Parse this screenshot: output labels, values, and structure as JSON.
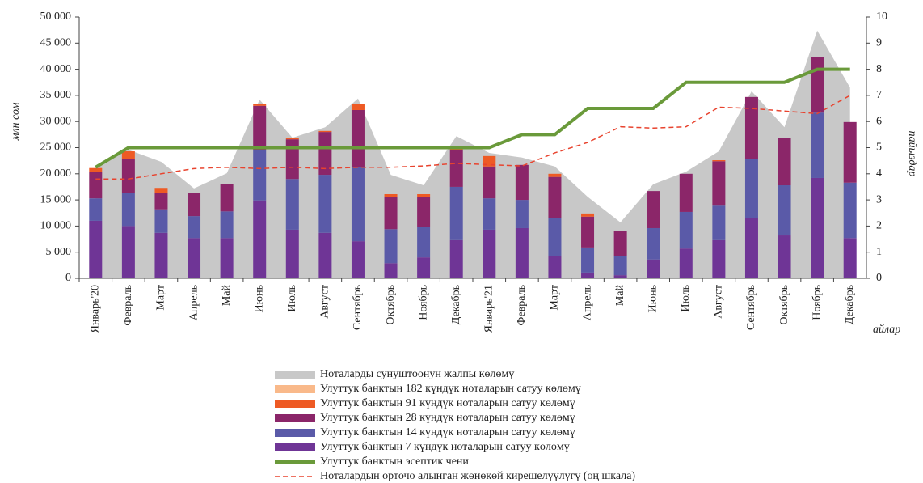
{
  "chart_data": {
    "type": "bar",
    "stacked": true,
    "categories": [
      "Январь'20",
      "Февраль",
      "Март",
      "Апрель",
      "Май",
      "Июнь",
      "Июль",
      "Август",
      "Сентябрь",
      "Октябрь",
      "Ноябрь",
      "Декабрь",
      "Январь'21",
      "Февраль",
      "Март",
      "Апрель",
      "Май",
      "Июнь",
      "Июль",
      "Август",
      "Сентябрь",
      "Октябрь",
      "Ноябрь",
      "Декабрь"
    ],
    "ylabel": "млн сом",
    "y2label": "пайыздар",
    "xlabel": "айлар",
    "ylim": [
      0,
      50000
    ],
    "yticks": [
      0,
      {
        "value": 5000,
        "label": "5 000"
      },
      {
        "value": 10000,
        "label": "10 000"
      },
      {
        "value": 15000,
        "label": "15 000"
      },
      {
        "value": 20000,
        "label": "20 000"
      },
      {
        "value": 25000,
        "label": "25 000"
      },
      {
        "value": 30000,
        "label": "30 000"
      },
      {
        "value": 35000,
        "label": "35 000"
      },
      {
        "value": 40000,
        "label": "40 000"
      },
      {
        "value": 45000,
        "label": "45 000"
      },
      {
        "value": 50000,
        "label": "50 000"
      }
    ],
    "y2lim": [
      0,
      10
    ],
    "y2ticks": [
      0,
      1,
      2,
      3,
      4,
      5,
      6,
      7,
      8,
      9,
      10
    ],
    "series": [
      {
        "name": "Ноталарды сунуштоонун жалпы көлөмү",
        "type": "area",
        "color": "#c8c8c8",
        "values": [
          21500,
          24600,
          22300,
          17200,
          20100,
          34200,
          26900,
          28900,
          34400,
          19800,
          17800,
          27200,
          24000,
          23100,
          21400,
          15600,
          10700,
          18000,
          20400,
          24300,
          35800,
          28900,
          47400,
          36500
        ]
      },
      {
        "name": "Улуттук банктын 182 күндүк ноталарын сатуу көлөмү",
        "type": "bar",
        "color": "#f9b98a",
        "values": [
          0,
          0,
          0,
          0,
          0,
          0,
          0,
          0,
          0,
          0,
          0,
          0,
          0,
          0,
          0,
          0,
          0,
          0,
          0,
          0,
          0,
          0,
          0,
          0
        ]
      },
      {
        "name": "Улуттук банктын 91 күндүк ноталарын сатуу көлөмү",
        "type": "bar",
        "color": "#ee5a24",
        "values": [
          700,
          1500,
          900,
          0,
          0,
          300,
          300,
          200,
          1200,
          500,
          600,
          700,
          2000,
          0,
          600,
          600,
          0,
          0,
          0,
          200,
          0,
          0,
          0,
          0
        ]
      },
      {
        "name": "Улуттук банктын 28 күндүк ноталарын сатуу көлөмү",
        "type": "bar",
        "color": "#8b2669",
        "values": [
          5100,
          6400,
          3200,
          4400,
          5300,
          8400,
          7600,
          8200,
          11000,
          6200,
          5700,
          7000,
          6100,
          6700,
          7800,
          5900,
          4800,
          7100,
          7300,
          8500,
          11800,
          9100,
          10700,
          11600
        ]
      },
      {
        "name": "Улуттук банктын 14 күндүк ноталарын сатуу көлөмү",
        "type": "bar",
        "color": "#5a5aa8",
        "values": [
          4300,
          6400,
          4500,
          4200,
          5100,
          9700,
          9700,
          11100,
          14100,
          6500,
          5800,
          10200,
          6000,
          5400,
          7400,
          4800,
          3700,
          6000,
          7000,
          6600,
          11300,
          9600,
          12500,
          10600
        ]
      },
      {
        "name": "Улуттук банктын 7 күндүк ноталарын сатуу көлөмү",
        "type": "bar",
        "color": "#6f3596",
        "values": [
          11000,
          10000,
          8700,
          7700,
          7700,
          14900,
          9300,
          8700,
          7100,
          2900,
          4000,
          7300,
          9300,
          9600,
          4200,
          1100,
          600,
          3600,
          5700,
          7300,
          11600,
          8200,
          19200,
          7700
        ]
      },
      {
        "name": "Улуттук банктын эсептик чени",
        "type": "line",
        "axis": "y2",
        "color": "#6a9a3a",
        "values": [
          4.25,
          5,
          5,
          5,
          5,
          5,
          5,
          5,
          5,
          5,
          5,
          5,
          5,
          5.5,
          5.5,
          6.5,
          6.5,
          6.5,
          7.5,
          7.5,
          7.5,
          7.5,
          8,
          8
        ]
      },
      {
        "name": "Ноталардын орточо алынган жөнөкөй кирешелүүлүгү (оң шкала)",
        "type": "line",
        "axis": "y2",
        "dashed": true,
        "color": "#e8432e",
        "values": [
          3.8,
          3.8,
          4.0,
          4.2,
          4.25,
          4.2,
          4.25,
          4.2,
          4.25,
          4.25,
          4.3,
          4.4,
          4.35,
          4.3,
          4.8,
          5.2,
          5.8,
          5.75,
          5.8,
          6.55,
          6.5,
          6.4,
          6.3,
          7.0
        ]
      }
    ]
  }
}
